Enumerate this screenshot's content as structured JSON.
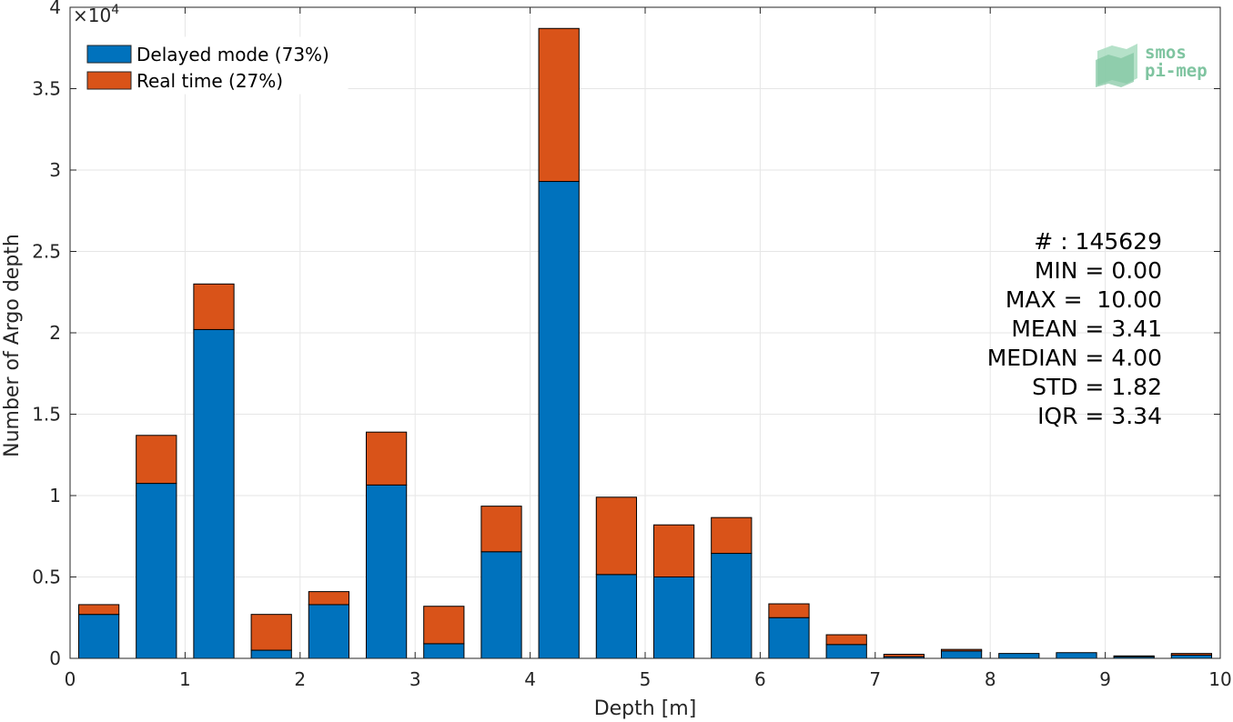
{
  "chart_data": {
    "type": "bar",
    "stacked": true,
    "xlabel": "Depth [m]",
    "ylabel": "Number of Argo depth",
    "y_exponent_label": "×10",
    "y_exponent_power": "4",
    "xlim": [
      0,
      10
    ],
    "ylim": [
      0,
      40000
    ],
    "grid": true,
    "x_ticks": [
      "0",
      "1",
      "2",
      "3",
      "4",
      "5",
      "6",
      "7",
      "8",
      "9",
      "10"
    ],
    "y_ticks": [
      "0",
      "0.5",
      "1",
      "1.5",
      "2",
      "2.5",
      "3",
      "3.5",
      "4"
    ],
    "y_tick_values": [
      0,
      5000,
      10000,
      15000,
      20000,
      25000,
      30000,
      35000,
      40000
    ],
    "bin_width": 0.5,
    "bar_width": 0.35,
    "x": [
      0.25,
      0.75,
      1.25,
      1.75,
      2.25,
      2.75,
      3.25,
      3.75,
      4.25,
      4.75,
      5.25,
      5.75,
      6.25,
      6.75,
      7.25,
      7.75,
      8.25,
      8.75,
      9.25,
      9.75
    ],
    "series": [
      {
        "name": "Delayed mode (73%)",
        "color": "#0072bd",
        "values": [
          2700,
          10750,
          20200,
          500,
          3300,
          10650,
          900,
          6550,
          29300,
          5150,
          5000,
          6450,
          2500,
          850,
          100,
          450,
          300,
          350,
          100,
          200
        ]
      },
      {
        "name": "Real time (27%)",
        "color": "#d95319",
        "values": [
          600,
          2950,
          2800,
          2200,
          800,
          3250,
          2300,
          2800,
          9400,
          4750,
          3200,
          2200,
          850,
          600,
          150,
          100,
          0,
          0,
          50,
          100
        ]
      }
    ],
    "legend_position": "top-left",
    "annotations": [
      "# : 145629",
      "MIN = 0.00",
      "MAX =  10.00",
      "MEAN = 3.41",
      "MEDIAN = 4.00",
      "STD = 1.82",
      "IQR = 3.34"
    ]
  },
  "logo": {
    "line1": "smos",
    "line2": "pi-mep",
    "color": "#7fc4a0"
  }
}
